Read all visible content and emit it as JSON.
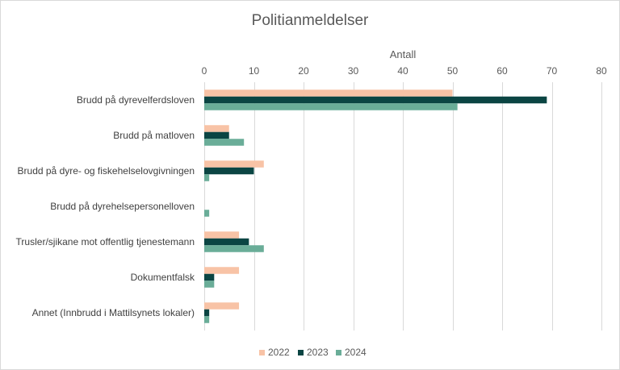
{
  "chart_data": {
    "type": "bar",
    "orientation": "horizontal",
    "title": "Politianmeldelser",
    "xlabel": "Antall",
    "xlim": [
      0,
      80
    ],
    "xticks": [
      0,
      10,
      20,
      30,
      40,
      50,
      60,
      70,
      80
    ],
    "grid": true,
    "legend_position": "bottom",
    "categories": [
      "Brudd på dyrevelferdsloven",
      "Brudd på matloven",
      "Brudd på dyre- og fiskehelselovgivningen",
      "Brudd på dyrehelsepersonelloven",
      "Trusler/sjikane mot offentlig tjenestemann",
      "Dokumentfalsk",
      "Annet (Innbrudd i Mattilsynets lokaler)"
    ],
    "series": [
      {
        "name": "2022",
        "color": "#f8c3a6",
        "values": [
          50,
          5,
          12,
          0,
          7,
          7,
          7
        ]
      },
      {
        "name": "2023",
        "color": "#0b4543",
        "values": [
          69,
          5,
          10,
          0,
          9,
          2,
          1
        ]
      },
      {
        "name": "2024",
        "color": "#6aad98",
        "values": [
          51,
          8,
          1,
          1,
          12,
          2,
          1
        ]
      }
    ]
  }
}
